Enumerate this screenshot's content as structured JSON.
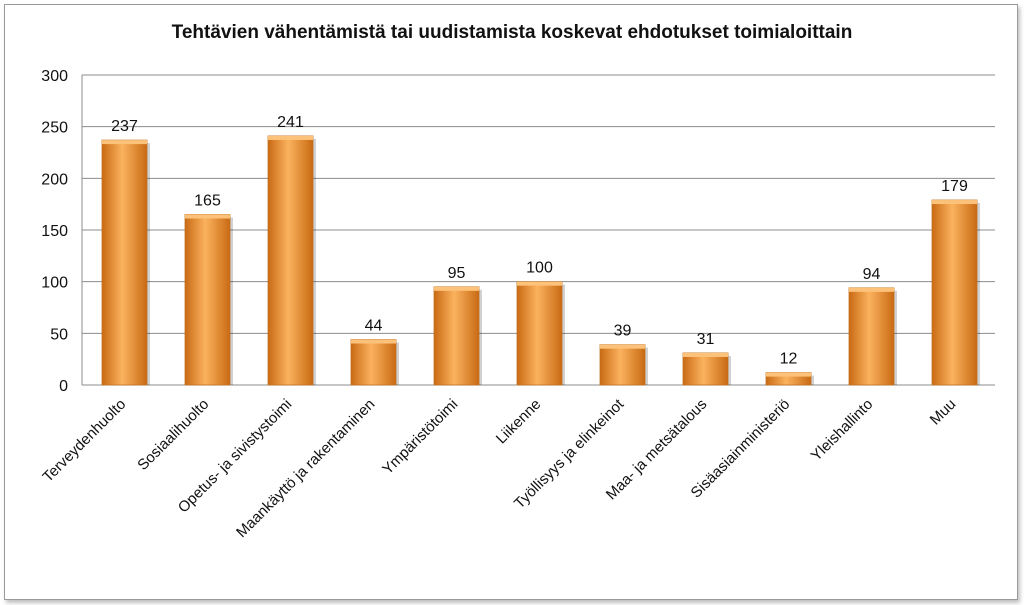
{
  "chart_data": {
    "type": "bar",
    "title": "Tehtävien vähentämistä tai uudistamista koskevat ehdotukset toimialoittain",
    "categories": [
      "Terveydenhuolto",
      "Sosiaalihuolto",
      "Opetus- ja sivistystoimi",
      "Maankäyttö ja rakentaminen",
      "Ympäristötoimi",
      "Liikenne",
      "Työllisyys ja elinkeinot",
      "Maa- ja metsätalous",
      "Sisäasiainministeriö",
      "Yleishallinto",
      "Muu"
    ],
    "values": [
      237,
      165,
      241,
      44,
      95,
      100,
      39,
      31,
      12,
      94,
      179
    ],
    "yticks": [
      0,
      50,
      100,
      150,
      200,
      250,
      300
    ],
    "ylim": [
      0,
      300
    ],
    "grid": true,
    "legend": "none",
    "bar_color": "#f59a3a",
    "bar_color_dark": "#c96a14",
    "bar_color_light": "#fbb25e"
  }
}
